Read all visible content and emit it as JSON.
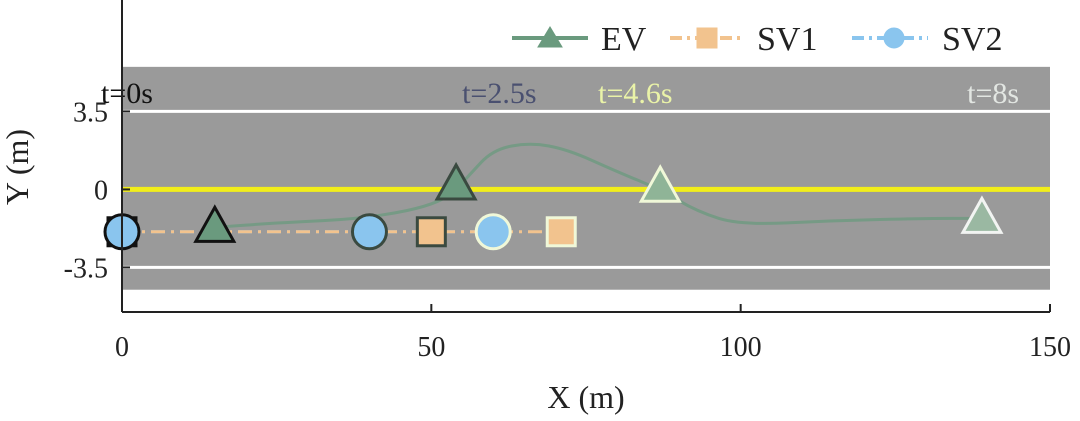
{
  "chart_data": {
    "type": "scatter",
    "xlabel": "X (m)",
    "ylabel": "Y (m)",
    "xlim": [
      0,
      150
    ],
    "ylim": [
      -5.5,
      8.5
    ],
    "xticks": [
      "0",
      "50",
      "100",
      "150"
    ],
    "yticks": [
      "-3.5",
      "0",
      "3.5"
    ],
    "lane_lines": {
      "center_y": 0,
      "edge_y": [
        3.5,
        -3.5
      ]
    },
    "road_y": [
      -4.5,
      5.5
    ],
    "grid": false,
    "legend_position": "top-right",
    "series": [
      {
        "name": "EV",
        "marker": "triangle",
        "color": "#6a9a7e",
        "linestyle": "solid"
      },
      {
        "name": "SV1",
        "marker": "square",
        "color": "#f2c38e",
        "linestyle": "dash-dot"
      },
      {
        "name": "SV2",
        "marker": "circle",
        "color": "#8ac5ee",
        "linestyle": "dash-dot"
      }
    ],
    "time_labels": [
      {
        "text": "t=0s",
        "x": 5,
        "color": "#111111"
      },
      {
        "text": "t=2.5s",
        "x": 67,
        "color": "#4a5070"
      },
      {
        "text": "t=4.6s",
        "x": 89,
        "color": "#eaf3a8"
      },
      {
        "text": "t=8s",
        "x": 145,
        "color": "#e2e6e2"
      }
    ],
    "ev_path": [
      [
        15,
        -1.7
      ],
      [
        25,
        -1.5
      ],
      [
        40,
        -1.3
      ],
      [
        52,
        -0.6
      ],
      [
        56,
        0.6
      ],
      [
        60,
        1.8
      ],
      [
        66,
        2.1
      ],
      [
        72,
        1.8
      ],
      [
        80,
        0.8
      ],
      [
        87,
        0
      ],
      [
        93,
        -1.0
      ],
      [
        100,
        -1.6
      ],
      [
        115,
        -1.4
      ],
      [
        130,
        -1.3
      ],
      [
        139,
        -1.3
      ]
    ],
    "snapshots": [
      {
        "t": "0s",
        "ev": [
          15,
          -1.7
        ],
        "sv1": [
          0,
          -1.9
        ],
        "sv2": [
          0,
          -1.9
        ],
        "style": "dark"
      },
      {
        "t": "2.5s",
        "ev": [
          54,
          0.2
        ],
        "sv1": [
          50,
          -1.9
        ],
        "sv2": [
          40,
          -1.9
        ],
        "style": "mid"
      },
      {
        "t": "4.6s",
        "ev": [
          87,
          0.1
        ],
        "sv1": [
          71,
          -1.9
        ],
        "sv2": [
          60,
          -1.9
        ],
        "style": "light"
      },
      {
        "t": "8s",
        "ev": [
          139,
          -1.3
        ],
        "sv1": null,
        "sv2": null,
        "style": "lighter"
      }
    ]
  }
}
